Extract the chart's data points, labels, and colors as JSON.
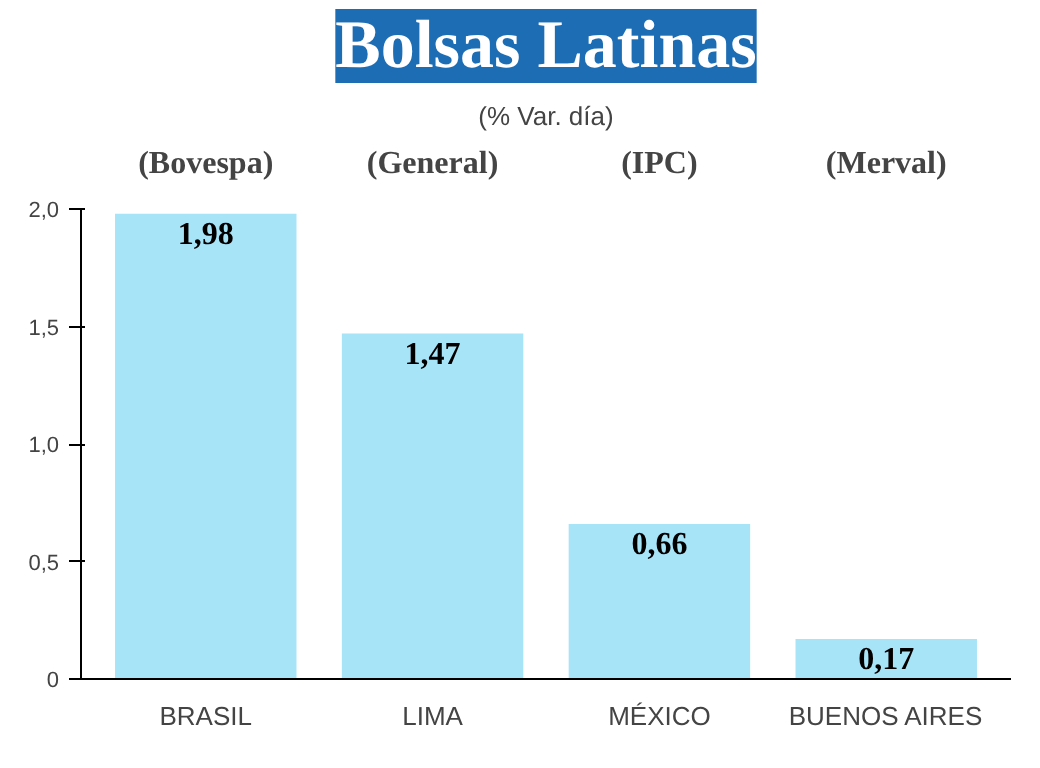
{
  "chart_data": {
    "type": "bar",
    "title": "Bolsas Latinas",
    "subtitle": "(% Var. día)",
    "categories": [
      "BRASIL",
      "LIMA",
      "MÉXICO",
      "BUENOS AIRES"
    ],
    "values": [
      1.98,
      1.47,
      0.66,
      0.17
    ],
    "value_labels": [
      "1,98",
      "1,47",
      "0,66",
      "0,17"
    ],
    "color": "#a8e4f8",
    "ylim": [
      0,
      2.0
    ],
    "yticks": [
      0,
      {
        "value": 0.5,
        "label": "0,5"
      },
      {
        "value": 1.0,
        "label": "1,0"
      },
      {
        "value": 1.5,
        "label": "1,5"
      },
      {
        "value": 2.0,
        "label": "2,0"
      }
    ],
    "annotations": [
      "(Bovespa)",
      "(General)",
      "(IPC)",
      "(Merval)"
    ],
    "grid": false
  }
}
